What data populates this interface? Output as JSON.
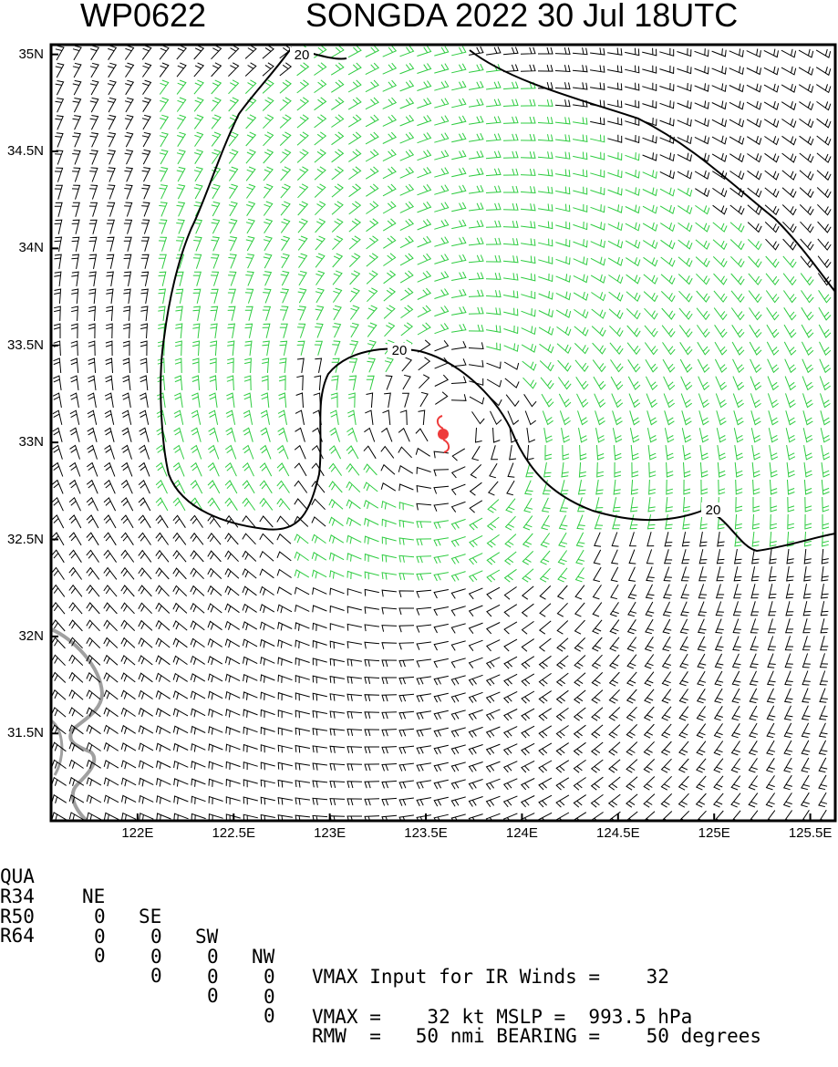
{
  "title": {
    "storm_id": "WP0622",
    "storm_info": "SONGDA 2022 30 Jul 18UTC"
  },
  "map": {
    "lat_labels": [
      "35N",
      "34.5N",
      "34N",
      "33.5N",
      "33N",
      "32.5N",
      "32N",
      "31.5N"
    ],
    "lon_labels": [
      "122E",
      "122.5E",
      "123E",
      "123.5E",
      "124E",
      "124.5E",
      "125E",
      "125.5E"
    ],
    "lat_range": [
      31.05,
      35.05
    ],
    "lon_range": [
      121.55,
      125.63
    ],
    "storm_center": {
      "lat": 33.08,
      "lon": 123.63
    },
    "contour_label": "20",
    "colors": {
      "barb_low": "#000000",
      "barb_high": "#2ecc40",
      "storm_symbol": "#ee3b3b",
      "coastline": "#a0a0a0",
      "contour": "#000000"
    }
  },
  "table": {
    "header": {
      "label": "QUA",
      "ne": "NE",
      "se": "SE",
      "sw": "SW",
      "nw": "NW"
    },
    "rows": [
      {
        "label": "R34",
        "ne": "0",
        "se": "0",
        "sw": "0",
        "nw": "0"
      },
      {
        "label": "R50",
        "ne": "0",
        "se": "0",
        "sw": "0",
        "nw": "0"
      },
      {
        "label": "R64",
        "ne": "0",
        "se": "0",
        "sw": "0",
        "nw": "0"
      }
    ]
  },
  "info": {
    "vmax_input": "VMAX Input for IR Winds =    32",
    "vmax_mslp": "VMAX =    32 kt MSLP =  993.5 hPa",
    "rmw_bearing": "RMW  =   50 nmi BEARING =    50 degrees"
  }
}
